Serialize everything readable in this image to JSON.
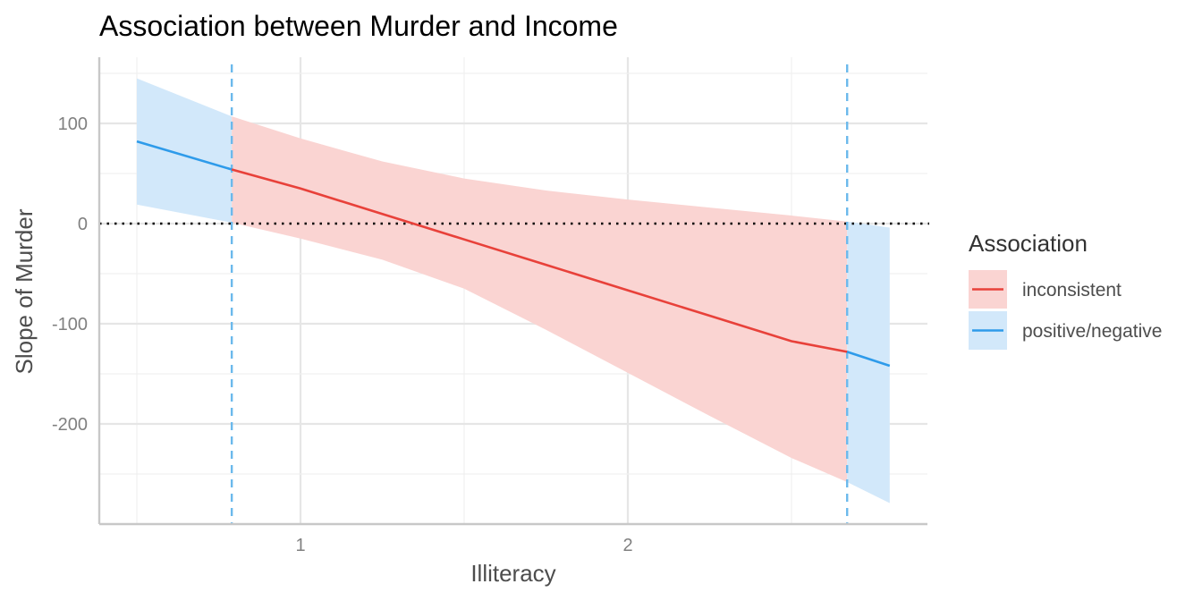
{
  "chart_data": {
    "type": "line",
    "title": "Association between Murder and Income",
    "xlabel": "Illiteracy",
    "ylabel": "Slope of Murder",
    "xlim": [
      0.5,
      2.8
    ],
    "ylim": [
      -300,
      155
    ],
    "x_ticks": [
      1,
      2
    ],
    "y_ticks": [
      100,
      0,
      -100,
      -200
    ],
    "x_tick_labels": [
      "1",
      "2"
    ],
    "y_tick_labels": [
      "100",
      "0",
      "-100",
      "-200"
    ],
    "grid": true,
    "reference_line_y": 0,
    "johnson_neyman_bounds": [
      0.79,
      2.67
    ],
    "legend": {
      "title": "Association",
      "position": "right",
      "entries": [
        {
          "label": "inconsistent",
          "color": "#F8766D",
          "line_color": "#E8413A",
          "fill": "#FAD4D2"
        },
        {
          "label": "positive/negative",
          "color": "#2E9BEA",
          "line_color": "#2E9BEA",
          "fill": "#D2E8FA"
        }
      ]
    },
    "series": [
      {
        "name": "positive/negative",
        "x": [
          0.5,
          0.79
        ],
        "y": [
          82,
          54
        ],
        "lower": [
          19,
          1
        ],
        "upper": [
          145,
          107
        ]
      },
      {
        "name": "inconsistent",
        "x": [
          0.79,
          1.0,
          1.25,
          1.5,
          1.75,
          2.0,
          2.25,
          2.5,
          2.67
        ],
        "y": [
          54,
          35,
          9.6,
          -15.8,
          -41.2,
          -66.6,
          -92,
          -117.4,
          -128
        ],
        "lower": [
          1,
          -15,
          -36,
          -65,
          -106,
          -149,
          -192,
          -234,
          -258
        ],
        "upper": [
          107,
          85,
          62,
          45,
          33,
          24,
          16,
          8,
          2
        ]
      },
      {
        "name": "positive/negative",
        "x": [
          2.67,
          2.8
        ],
        "y": [
          -128,
          -142
        ],
        "lower": [
          -258,
          -279
        ],
        "upper": [
          2,
          -4
        ]
      }
    ]
  }
}
